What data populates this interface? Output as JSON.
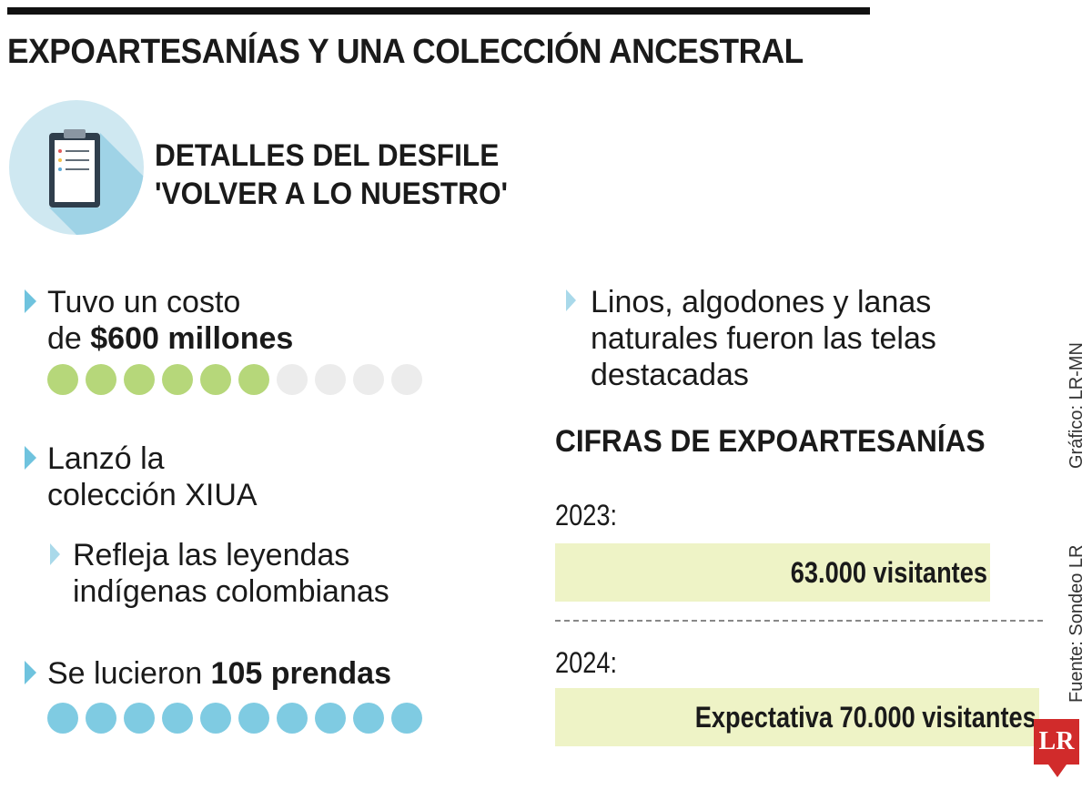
{
  "header": {
    "title": "EXPOARTESANÍAS Y UNA COLECCIÓN ANCESTRAL"
  },
  "section": {
    "title_line1": "DETALLES DEL DESFILE",
    "title_line2": "'VOLVER A LO NUESTRO'",
    "icon": "clipboard-icon"
  },
  "bullets": {
    "costo_line1": "Tuvo un costo",
    "costo_prefix": "de ",
    "costo_value": "$600 millones",
    "costo_level": {
      "filled": 6,
      "total": 10
    },
    "coleccion_line1": "Lanzó la",
    "coleccion_line2": "colección XIUA",
    "leyendas_line1": "Refleja las leyendas",
    "leyendas_line2": "indígenas colombianas",
    "prendas_prefix": "Se lucieron ",
    "prendas_value": "105 prendas",
    "prendas_level": {
      "filled": 10,
      "total": 10
    },
    "telas_line1": "Linos, algodones y lanas",
    "telas_line2": "naturales  fueron las telas",
    "telas_line3": "destacadas"
  },
  "cifras": {
    "title": "CIFRAS DE EXPOARTESANÍAS",
    "rows": [
      {
        "year": "2023:",
        "label": "63.000 visitantes",
        "value": 63000
      },
      {
        "year": "2024:",
        "label": "Expectativa 70.000 visitantes",
        "value": 70000
      }
    ]
  },
  "credits": {
    "grafico": "Gráfico: LR-MN",
    "fuente": "Fuente: Sondeo LR",
    "logo": "LR"
  },
  "colors": {
    "accent_blue": "#7fcbe2",
    "accent_green": "#b6d77a",
    "dot_empty": "#ececec",
    "bar_fill": "#eef3c6",
    "brand_red": "#d12b2b"
  }
}
